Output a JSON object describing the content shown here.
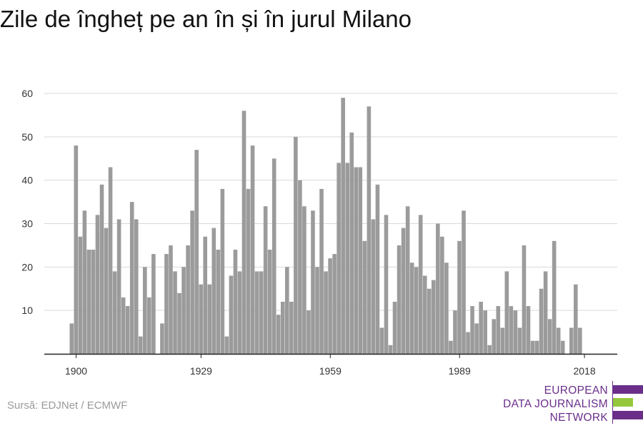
{
  "title": "Zile de îngheț pe an în și în jurul Milano",
  "source": "Sursă: EDJNet / ECMWF",
  "logo": {
    "lines": [
      "EUROPEAN",
      "DATA JOURNALISM",
      "NETWORK"
    ],
    "colors": {
      "primary": "#6b2f8a",
      "accent": "#95c93d"
    }
  },
  "colors": {
    "bar": "#9b9b9b",
    "grid": "#d9d9d9",
    "axis": "#222222",
    "text": "#333333"
  },
  "chart_data": {
    "type": "bar",
    "x_start": 1899,
    "x_end": 2019,
    "xticks": [
      1900,
      1929,
      1959,
      1989,
      2018
    ],
    "yticks": [
      10,
      20,
      30,
      40,
      50,
      60
    ],
    "ylim": [
      0,
      62
    ],
    "grid": true,
    "values": [
      7,
      48,
      27,
      33,
      24,
      24,
      32,
      39,
      29,
      43,
      19,
      31,
      13,
      11,
      35,
      31,
      4,
      20,
      13,
      23,
      0,
      7,
      23,
      25,
      19,
      14,
      20,
      25,
      33,
      47,
      16,
      27,
      16,
      29,
      24,
      38,
      4,
      18,
      24,
      19,
      56,
      38,
      48,
      19,
      19,
      34,
      24,
      45,
      9,
      12,
      20,
      12,
      50,
      40,
      34,
      10,
      33,
      20,
      38,
      19,
      22,
      23,
      44,
      59,
      44,
      51,
      43,
      43,
      26,
      57,
      31,
      39,
      6,
      32,
      2,
      12,
      25,
      29,
      34,
      21,
      20,
      32,
      18,
      15,
      17,
      30,
      27,
      21,
      3,
      10,
      26,
      33,
      5,
      11,
      7,
      12,
      10,
      2,
      8,
      11,
      6,
      19,
      11,
      10,
      6,
      25,
      11,
      3,
      3,
      15,
      19,
      8,
      26,
      6,
      3,
      0,
      6,
      16,
      6
    ]
  }
}
